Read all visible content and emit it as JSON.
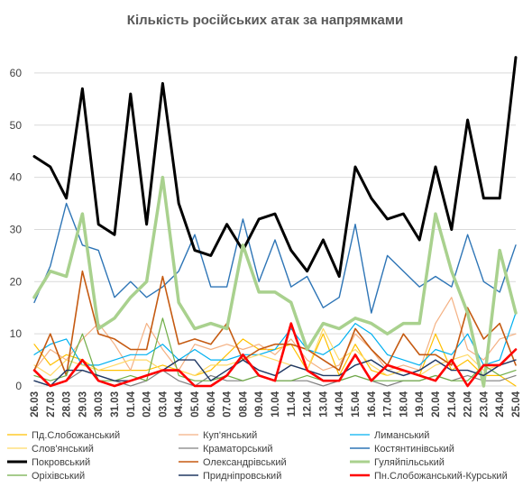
{
  "chart_data": {
    "type": "line",
    "title": "Кількість російських атак за напрямками",
    "xlabel": "",
    "ylabel": "",
    "ylim": [
      0,
      65
    ],
    "yticks": [
      0,
      10,
      20,
      30,
      40,
      50,
      60
    ],
    "grid": true,
    "legend_position": "bottom",
    "x": [
      "26.03",
      "27.03",
      "28.03",
      "29.03",
      "30.03",
      "31.03",
      "01.04",
      "02.04",
      "03.04",
      "04.04",
      "05.04",
      "06.04",
      "07.04",
      "08.04",
      "09.04",
      "10.04",
      "11.04",
      "12.04",
      "13.04",
      "14.04",
      "15.04",
      "16.04",
      "17.04",
      "18.04",
      "19.04",
      "20.04",
      "21.04",
      "22.04",
      "23.04",
      "24.04",
      "25.04"
    ],
    "series": [
      {
        "name": "Пд.Слобожанський",
        "color": "#FFC000",
        "width": 1.2,
        "values": [
          8,
          4,
          6,
          5,
          3,
          3,
          3,
          3,
          4,
          3,
          2,
          3,
          6,
          9,
          7,
          7,
          8,
          3,
          10,
          2,
          8,
          3,
          2,
          3,
          2,
          10,
          3,
          5,
          2,
          2,
          0
        ]
      },
      {
        "name": "Куп'янський",
        "color": "#F4B183",
        "width": 1.2,
        "values": [
          3,
          7,
          5,
          9,
          12,
          8,
          3,
          12,
          7,
          3,
          8,
          7,
          8,
          7,
          8,
          6,
          9,
          5,
          3,
          4,
          10,
          7,
          3,
          4,
          3,
          12,
          17,
          7,
          5,
          9,
          10
        ]
      },
      {
        "name": "Лиманський",
        "color": "#00B0F0",
        "width": 1.2,
        "values": [
          6,
          8,
          9,
          4,
          4,
          5,
          6,
          6,
          8,
          5,
          7,
          5,
          5,
          6,
          6,
          7,
          11,
          7,
          6,
          8,
          12,
          10,
          6,
          5,
          4,
          7,
          6,
          10,
          4,
          5,
          14
        ]
      },
      {
        "name": "Слов'янський",
        "color": "#FFD966",
        "width": 1.2,
        "values": [
          4,
          2,
          5,
          4,
          3,
          4,
          5,
          5,
          3,
          3,
          2,
          4,
          4,
          5,
          6,
          5,
          4,
          3,
          11,
          5,
          7,
          4,
          2,
          3,
          2,
          4,
          5,
          6,
          3,
          4,
          5
        ]
      },
      {
        "name": "Краматорський",
        "color": "#808080",
        "width": 1.2,
        "values": [
          1,
          0,
          1,
          3,
          2,
          1,
          0,
          1,
          3,
          1,
          0,
          2,
          1,
          1,
          2,
          1,
          1,
          1,
          0,
          1,
          2,
          1,
          0,
          1,
          1,
          2,
          1,
          2,
          1,
          1,
          2
        ]
      },
      {
        "name": "Костянтинівський",
        "color": "#2E75B6",
        "width": 1.4,
        "values": [
          16,
          23,
          35,
          27,
          26,
          17,
          20,
          17,
          19,
          22,
          29,
          19,
          19,
          32,
          20,
          28,
          19,
          21,
          15,
          17,
          31,
          14,
          25,
          22,
          19,
          21,
          19,
          29,
          20,
          18,
          27
        ]
      },
      {
        "name": "Покровський",
        "color": "#000000",
        "width": 3,
        "values": [
          44,
          42,
          36,
          57,
          31,
          29,
          56,
          31,
          58,
          35,
          26,
          25,
          31,
          26,
          32,
          33,
          26,
          22,
          28,
          21,
          42,
          36,
          32,
          33,
          28,
          42,
          30,
          51,
          36,
          36,
          63
        ]
      },
      {
        "name": "Олександрівський",
        "color": "#C55A11",
        "width": 1.6,
        "values": [
          3,
          10,
          2,
          22,
          10,
          9,
          7,
          7,
          21,
          8,
          9,
          8,
          12,
          5,
          7,
          8,
          8,
          7,
          5,
          3,
          11,
          7,
          4,
          10,
          6,
          6,
          4,
          15,
          9,
          12,
          4
        ]
      },
      {
        "name": "Гуляйпільський",
        "color": "#A9D18E",
        "width": 3.5,
        "values": [
          17,
          22,
          21,
          33,
          11,
          13,
          17,
          20,
          40,
          16,
          11,
          12,
          11,
          27,
          18,
          18,
          16,
          7,
          12,
          11,
          13,
          12,
          10,
          12,
          12,
          33,
          22,
          14,
          0,
          26,
          14
        ]
      },
      {
        "name": "Оріхівський",
        "color": "#70AD47",
        "width": 1.2,
        "values": [
          2,
          1,
          2,
          10,
          1,
          1,
          2,
          1,
          13,
          2,
          1,
          1,
          2,
          1,
          2,
          1,
          1,
          2,
          1,
          1,
          2,
          1,
          1,
          1,
          1,
          2,
          1,
          1,
          4,
          2,
          3
        ]
      },
      {
        "name": "Придніпровський",
        "color": "#203864",
        "width": 1.4,
        "values": [
          1,
          0,
          3,
          3,
          2,
          1,
          1,
          2,
          3,
          5,
          5,
          1,
          3,
          5,
          3,
          2,
          4,
          3,
          2,
          2,
          4,
          5,
          3,
          2,
          3,
          5,
          3,
          3,
          2,
          4,
          5
        ]
      },
      {
        "name": "Пн.Слобожанський-Курський",
        "color": "#FF0000",
        "width": 2.6,
        "values": [
          3,
          0,
          1,
          5,
          1,
          0,
          1,
          2,
          3,
          3,
          0,
          0,
          2,
          6,
          2,
          1,
          12,
          3,
          1,
          1,
          6,
          1,
          4,
          3,
          2,
          1,
          5,
          0,
          4,
          4,
          7
        ]
      }
    ]
  }
}
